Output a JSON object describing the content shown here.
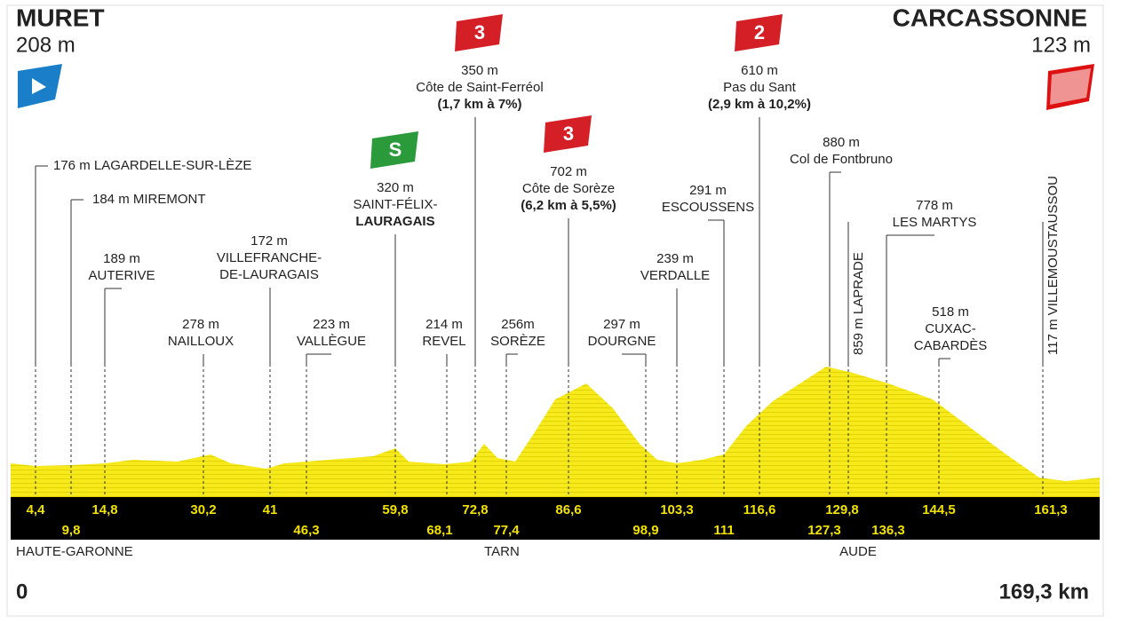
{
  "start": {
    "name": "MURET",
    "altitude": "208 m"
  },
  "finish": {
    "name": "CARCASSONNE",
    "altitude": "123 m"
  },
  "distance_start": "0",
  "distance_total": "169,3 km",
  "waypoints": [
    {
      "lines": [
        "176 m LAGARDELLE-SUR-LÈZE"
      ]
    },
    {
      "lines": [
        "184 m MIREMONT"
      ]
    },
    {
      "lines": [
        "189 m",
        "AUTERIVE"
      ]
    },
    {
      "lines": [
        "278 m",
        "NAILLOUX"
      ]
    },
    {
      "lines": [
        "172 m",
        "VILLEFRANCHE-",
        "DE-LAURAGAIS"
      ]
    },
    {
      "lines": [
        "223 m",
        "VALLÈGUE"
      ]
    },
    {
      "lines": [
        "320 m",
        "SAINT-FÉLIX-",
        "LAURAGAIS"
      ],
      "category": "S"
    },
    {
      "lines": [
        "214 m",
        "REVEL"
      ]
    },
    {
      "lines": [
        "350 m",
        "Côte de Saint-Ferréol",
        "(1,7 km à 7%)"
      ],
      "category": "3"
    },
    {
      "lines": [
        "256m",
        "SORÈZE"
      ]
    },
    {
      "lines": [
        "702 m",
        "Côte de Sorèze",
        "(6,2 km à 5,5%)"
      ],
      "category": "3"
    },
    {
      "lines": [
        "297 m",
        "DOURGNE"
      ]
    },
    {
      "lines": [
        "239 m",
        "VERDALLE"
      ]
    },
    {
      "lines": [
        "291 m",
        "ESCOUSSENS"
      ]
    },
    {
      "lines": [
        "610 m",
        "Pas du Sant",
        "(2,9 km à 10,2%)"
      ],
      "category": "2"
    },
    {
      "lines": [
        "880 m",
        "Col de Fontbruno"
      ]
    },
    {
      "lines": [
        "859 m LAPRADE"
      ]
    },
    {
      "lines": [
        "778 m",
        "LES MARTYS"
      ]
    },
    {
      "lines": [
        "518 m",
        "CUXAC-",
        "CABARDÈS"
      ]
    },
    {
      "lines": [
        "117 m VILLEMOUSTAUSSOU"
      ]
    }
  ],
  "km_markers": [
    "4,4",
    "9,8",
    "14,8",
    "30,2",
    "41",
    "46,3",
    "59,8",
    "68,1",
    "72,8",
    "77,4",
    "86,6",
    "98,9",
    "103,3",
    "111",
    "116,6",
    "127,3",
    "129,8",
    "136,3",
    "144,5",
    "161,3"
  ],
  "regions": [
    "HAUTE-GARONNE",
    "TARN",
    "AUDE"
  ]
}
